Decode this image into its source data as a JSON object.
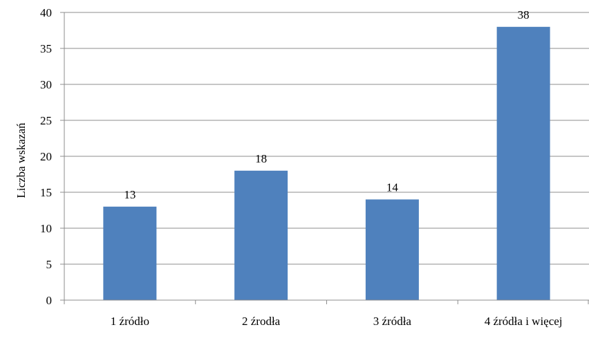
{
  "chart_data": {
    "type": "bar",
    "title": "",
    "xlabel": "",
    "ylabel": "Liczba wskazań",
    "categories": [
      "1 źródło",
      "2 źrodła",
      "3 źródła",
      "4 źródła i więcej"
    ],
    "values": [
      13,
      18,
      14,
      38
    ],
    "data_labels": [
      "13",
      "18",
      "14",
      "38"
    ],
    "ylim": [
      0,
      40
    ],
    "yticks": [
      0,
      5,
      10,
      15,
      20,
      25,
      30,
      35,
      40
    ],
    "grid": true,
    "legend": "none",
    "bar_color": "#4f81bd"
  }
}
